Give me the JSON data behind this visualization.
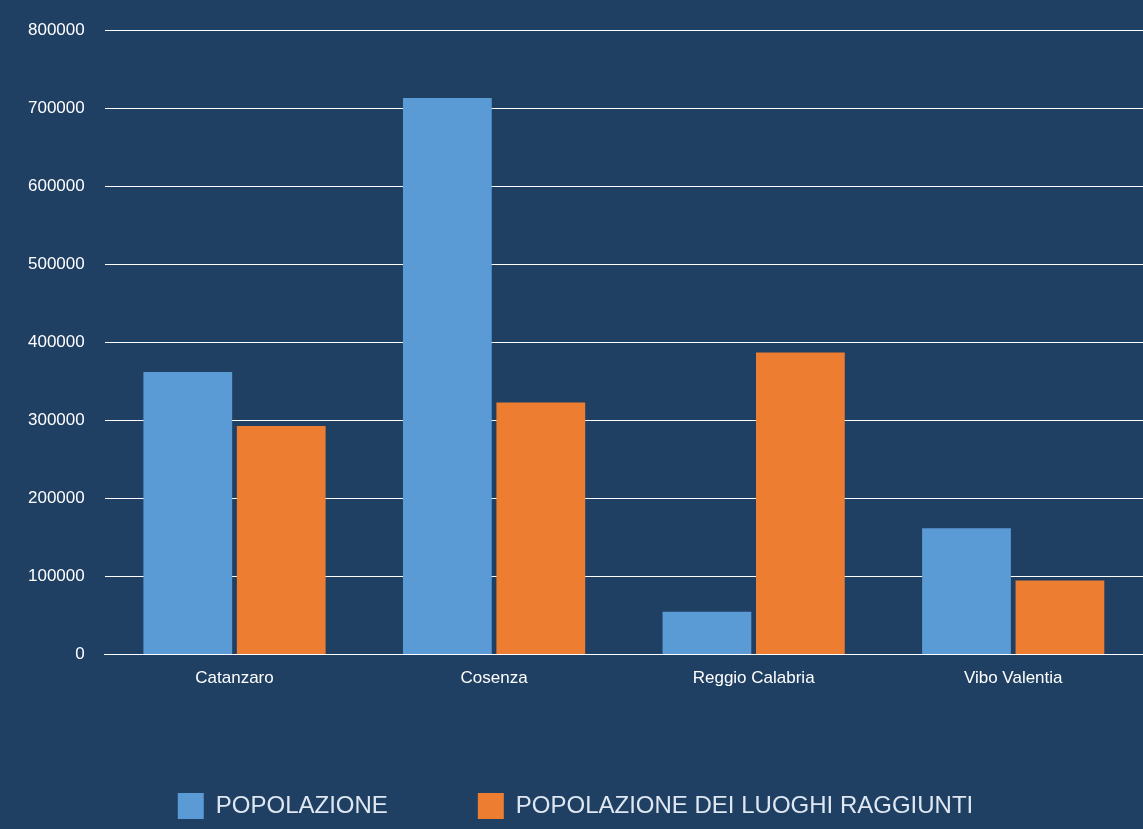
{
  "chart_data": {
    "type": "bar",
    "categories": [
      "Catanzaro",
      "Cosenza",
      "Reggio Calabria",
      "Vibo Valentia"
    ],
    "series": [
      {
        "name": "POPOLAZIONE",
        "color": "#5b9bd5",
        "values": [
          362000,
          713000,
          55000,
          162000
        ]
      },
      {
        "name": "POPOLAZIONE DEI LUOGHI RAGGIUNTI",
        "color": "#ed7d31",
        "values": [
          293000,
          323000,
          387000,
          95000
        ]
      }
    ],
    "ylim": [
      0,
      800000
    ],
    "yticks": [
      0,
      100000,
      200000,
      300000,
      400000,
      500000,
      600000,
      700000,
      800000
    ],
    "grid": "y",
    "legend": "bottom"
  }
}
